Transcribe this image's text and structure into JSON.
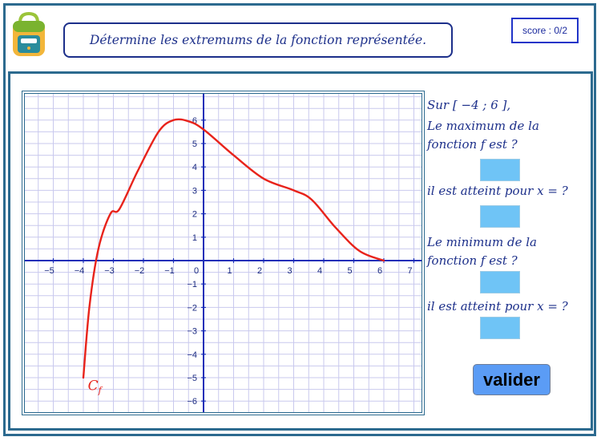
{
  "header": {
    "title": "Détermine les extremums de la fonction représentée.",
    "score": "score : 0/2"
  },
  "graph": {
    "curve_label": "C_f",
    "curve_color": "#e8231b",
    "axis_color": "#1a2fb8",
    "grid_color": "#c9c9ee",
    "x_ticks": [
      "−5",
      "−4",
      "−3",
      "−2",
      "−1",
      "0",
      "1",
      "2",
      "3",
      "4",
      "5",
      "6",
      "7"
    ],
    "y_ticks": [
      "6",
      "5",
      "4",
      "3",
      "2",
      "1",
      "−1",
      "−2",
      "−3",
      "−4",
      "−5",
      "−6"
    ],
    "curve_points": [
      [
        -4,
        -5
      ],
      [
        -3.8,
        -2
      ],
      [
        -3.5,
        0.5
      ],
      [
        -3.1,
        2
      ],
      [
        -2.8,
        2.2
      ],
      [
        -2.2,
        3.8
      ],
      [
        -1.5,
        5.5
      ],
      [
        -1,
        6
      ],
      [
        -0.5,
        5.95
      ],
      [
        0,
        5.6
      ],
      [
        1,
        4.5
      ],
      [
        2,
        3.5
      ],
      [
        3,
        3
      ],
      [
        3.6,
        2.6
      ],
      [
        4.4,
        1.4
      ],
      [
        5.2,
        0.4
      ],
      [
        6,
        0
      ]
    ]
  },
  "questions": {
    "interval": "Sur [ −4 ; 6 ],",
    "max_line1": "Le maximum de la",
    "max_line2": "fonction f est ?",
    "max_at": "il est atteint pour x = ?",
    "min_line1": "Le minimum de la",
    "min_line2": "fonction f est ?",
    "min_at": "il est atteint pour x = ?"
  },
  "answers": {
    "max_value": "",
    "max_x": "",
    "min_value": "",
    "min_x": ""
  },
  "buttons": {
    "validate": "valider"
  },
  "colors": {
    "frame": "#2c6a8f",
    "text_blue": "#1c2f8a",
    "answer_box": "#6fc4f6",
    "validate_button": "#5b9cf5"
  }
}
